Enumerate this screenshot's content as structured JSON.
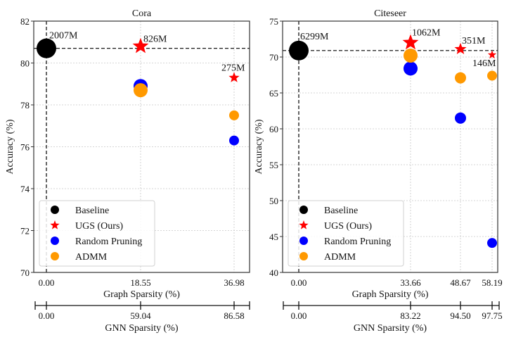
{
  "chart_data": [
    {
      "type": "scatter",
      "title": "Cora",
      "xlabel": "Graph Sparsity (%)",
      "ylabel": "Accuracy (%)",
      "secondary_xlabel": "GNN Sparsity (%)",
      "ylim": [
        70,
        82
      ],
      "yticks": [
        70,
        72,
        74,
        76,
        78,
        80,
        82
      ],
      "xticks": [
        "0.00",
        "18.55",
        "36.98"
      ],
      "secondary_xticks": [
        "0.00",
        "59.04",
        "86.58"
      ],
      "grid": true,
      "legend_position": "lower-left",
      "baseline_accuracy": 80.7,
      "series": [
        {
          "name": "Baseline",
          "color": "#000000",
          "marker": "circle",
          "points": [
            {
              "x": "0.00",
              "y": 80.7,
              "label": "2007M"
            }
          ]
        },
        {
          "name": "UGS (Ours)",
          "color": "#ff0000",
          "marker": "star",
          "points": [
            {
              "x": "18.55",
              "y": 80.8,
              "label": "826M"
            },
            {
              "x": "36.98",
              "y": 79.3,
              "label": "275M"
            }
          ]
        },
        {
          "name": "Random Pruning",
          "color": "#0000ff",
          "marker": "circle",
          "points": [
            {
              "x": "18.55",
              "y": 78.9
            },
            {
              "x": "36.98",
              "y": 76.3
            }
          ]
        },
        {
          "name": "ADMM",
          "color": "#ff9900",
          "marker": "circle",
          "points": [
            {
              "x": "18.55",
              "y": 78.7
            },
            {
              "x": "36.98",
              "y": 77.5
            }
          ]
        }
      ]
    },
    {
      "type": "scatter",
      "title": "Citeseer",
      "xlabel": "Graph Sparsity (%)",
      "ylabel": "Accuracy (%)",
      "secondary_xlabel": "GNN Sparsity (%)",
      "ylim": [
        40,
        75
      ],
      "yticks": [
        40,
        45,
        50,
        55,
        60,
        65,
        70,
        75
      ],
      "xticks": [
        "0.00",
        "33.66",
        "48.67",
        "58.19"
      ],
      "secondary_xticks": [
        "0.00",
        "83.22",
        "94.50",
        "97.75"
      ],
      "grid": true,
      "legend_position": "lower-left",
      "baseline_accuracy": 70.9,
      "series": [
        {
          "name": "Baseline",
          "color": "#000000",
          "marker": "circle",
          "points": [
            {
              "x": "0.00",
              "y": 70.9,
              "label": "6299M"
            }
          ]
        },
        {
          "name": "UGS (Ours)",
          "color": "#ff0000",
          "marker": "star",
          "points": [
            {
              "x": "33.66",
              "y": 72.0,
              "label": "1062M"
            },
            {
              "x": "48.67",
              "y": 71.1,
              "label": "351M"
            },
            {
              "x": "58.19",
              "y": 70.3,
              "label": "146M"
            }
          ]
        },
        {
          "name": "Random Pruning",
          "color": "#0000ff",
          "marker": "circle",
          "points": [
            {
              "x": "33.66",
              "y": 68.4
            },
            {
              "x": "48.67",
              "y": 61.5
            },
            {
              "x": "58.19",
              "y": 44.1
            }
          ]
        },
        {
          "name": "ADMM",
          "color": "#ff9900",
          "marker": "circle",
          "points": [
            {
              "x": "33.66",
              "y": 70.2
            },
            {
              "x": "48.67",
              "y": 67.1
            },
            {
              "x": "58.19",
              "y": 67.4
            }
          ]
        }
      ]
    }
  ]
}
